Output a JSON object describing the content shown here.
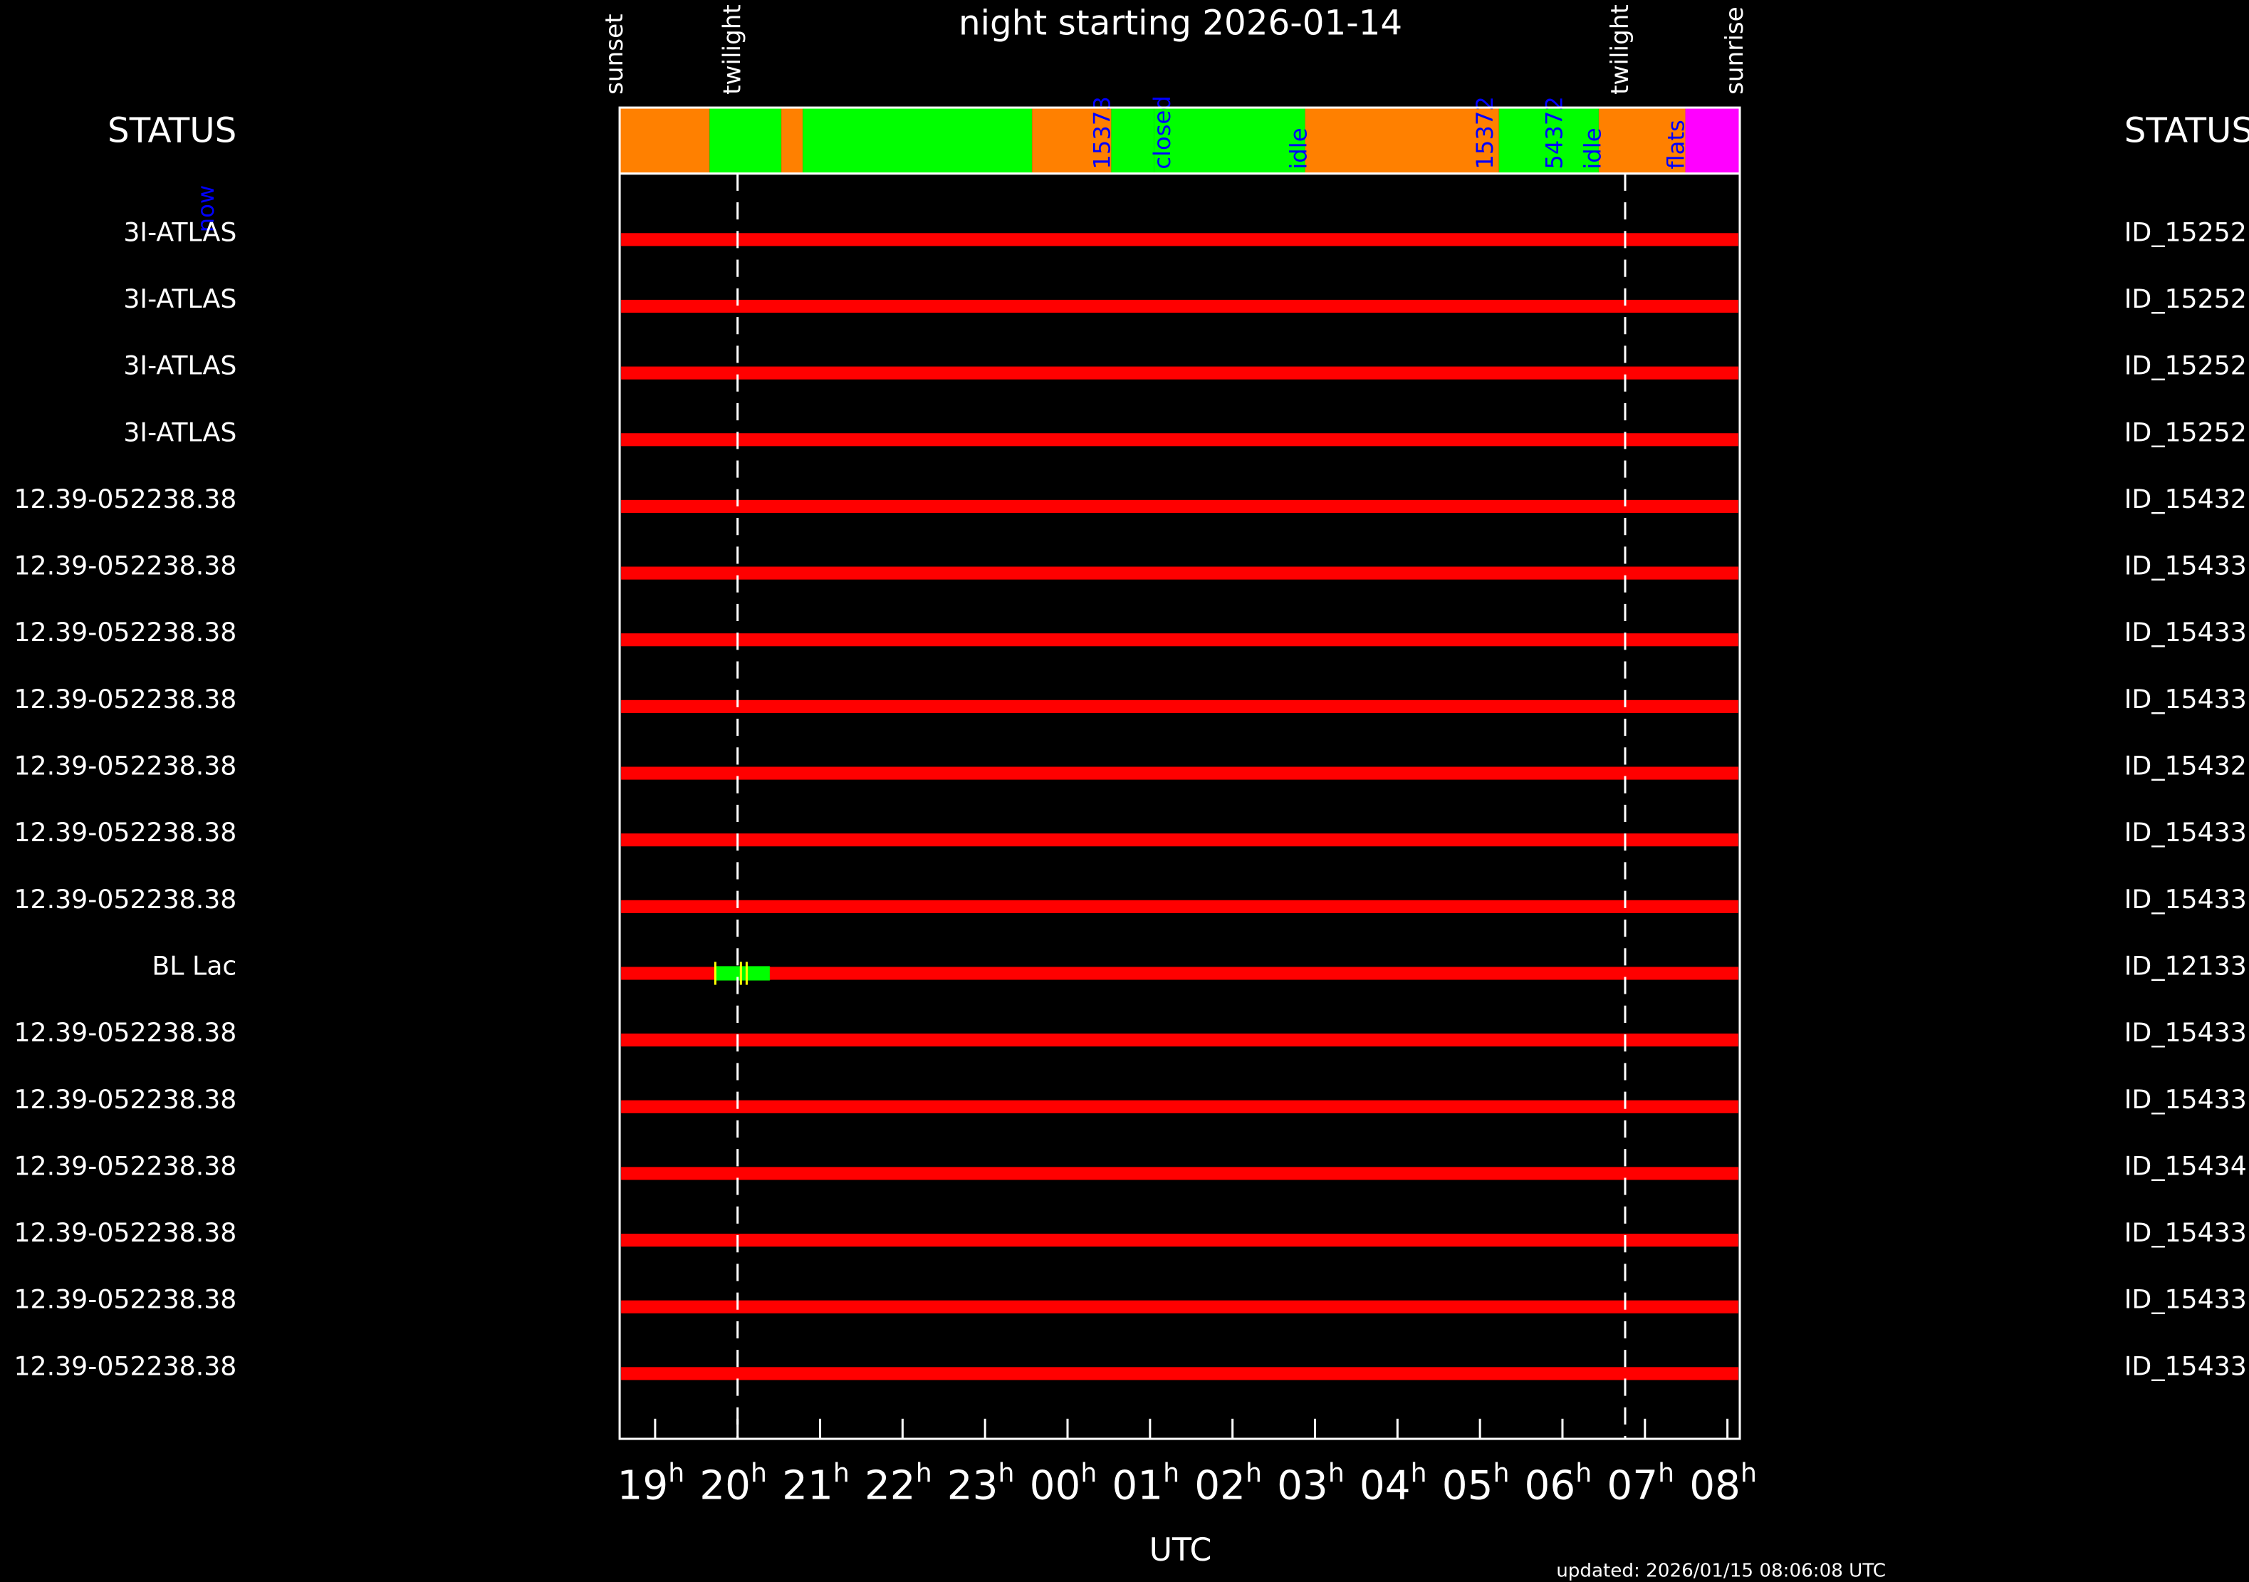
{
  "title": "night starting 2026-01-14",
  "axis": {
    "label": "UTC",
    "xlim": [
      18.57,
      32.15
    ],
    "ticks": [
      {
        "value": 19,
        "label": "19",
        "suffix": "h"
      },
      {
        "value": 20,
        "label": "20",
        "suffix": "h"
      },
      {
        "value": 21,
        "label": "21",
        "suffix": "h"
      },
      {
        "value": 22,
        "label": "22",
        "suffix": "h"
      },
      {
        "value": 23,
        "label": "23",
        "suffix": "h"
      },
      {
        "value": 24,
        "label": "00",
        "suffix": "h"
      },
      {
        "value": 25,
        "label": "01",
        "suffix": "h"
      },
      {
        "value": 26,
        "label": "02",
        "suffix": "h"
      },
      {
        "value": 27,
        "label": "03",
        "suffix": "h"
      },
      {
        "value": 28,
        "label": "04",
        "suffix": "h"
      },
      {
        "value": 29,
        "label": "05",
        "suffix": "h"
      },
      {
        "value": 30,
        "label": "06",
        "suffix": "h"
      },
      {
        "value": 31,
        "label": "07",
        "suffix": "h"
      },
      {
        "value": 32,
        "label": "08",
        "suffix": "h"
      }
    ]
  },
  "events": [
    {
      "label": "sunset",
      "time": 18.57
    },
    {
      "label": "twilight",
      "time": 20.0,
      "line": true
    },
    {
      "label": "twilight",
      "time": 30.76,
      "line": true
    },
    {
      "label": "sunrise",
      "time": 32.15
    }
  ],
  "status": {
    "label_left": "STATUS",
    "label_right": "STATUS",
    "now": "now",
    "segments": [
      {
        "start": 18.57,
        "end": 19.66,
        "color": "#ff8000"
      },
      {
        "start": 19.66,
        "end": 20.53,
        "color": "#00ff00"
      },
      {
        "start": 20.53,
        "end": 20.79,
        "color": "#ff8000"
      },
      {
        "start": 20.79,
        "end": 23.57,
        "color": "#00ff00"
      },
      {
        "start": 23.57,
        "end": 24.53,
        "color": "#ff8000"
      },
      {
        "start": 24.53,
        "end": 25.05,
        "color": "#00ff00"
      },
      {
        "start": 25.05,
        "end": 26.88,
        "color": "#00ff00"
      },
      {
        "start": 26.88,
        "end": 29.23,
        "color": "#ff8000"
      },
      {
        "start": 29.23,
        "end": 30.44,
        "color": "#00ff00"
      },
      {
        "start": 30.44,
        "end": 31.49,
        "color": "#ff8000"
      },
      {
        "start": 31.49,
        "end": 32.15,
        "color": "#ff00ff"
      }
    ],
    "labels": [
      {
        "text": "15373",
        "time": 24.41
      },
      {
        "text": "closed",
        "time": 25.14
      },
      {
        "text": "idle",
        "time": 26.79
      },
      {
        "text": "15372",
        "time": 29.05
      },
      {
        "text": "54372",
        "time": 29.89
      },
      {
        "text": "idle",
        "time": 30.36
      },
      {
        "text": "flats",
        "time": 31.37
      }
    ]
  },
  "rows": [
    {
      "name": "3I-ATLAS",
      "id": "ID_15252"
    },
    {
      "name": "3I-ATLAS",
      "id": "ID_15252"
    },
    {
      "name": "3I-ATLAS",
      "id": "ID_15252"
    },
    {
      "name": "3I-ATLAS",
      "id": "ID_15252"
    },
    {
      "name": "12.39-052238.38",
      "id": "ID_15432"
    },
    {
      "name": "12.39-052238.38",
      "id": "ID_15433"
    },
    {
      "name": "12.39-052238.38",
      "id": "ID_15433"
    },
    {
      "name": "12.39-052238.38",
      "id": "ID_15433"
    },
    {
      "name": "12.39-052238.38",
      "id": "ID_15432"
    },
    {
      "name": "12.39-052238.38",
      "id": "ID_15433"
    },
    {
      "name": "12.39-052238.38",
      "id": "ID_15433"
    },
    {
      "name": "BL Lac",
      "id": "ID_12133",
      "observations": [
        {
          "start": 19.73,
          "end": 20.39
        }
      ],
      "markers": [
        19.73,
        20.04,
        20.11
      ]
    },
    {
      "name": "12.39-052238.38",
      "id": "ID_15433"
    },
    {
      "name": "12.39-052238.38",
      "id": "ID_15433"
    },
    {
      "name": "12.39-052238.38",
      "id": "ID_15434"
    },
    {
      "name": "12.39-052238.38",
      "id": "ID_15433"
    },
    {
      "name": "12.39-052238.38",
      "id": "ID_15433"
    },
    {
      "name": "12.39-052238.38",
      "id": "ID_15433"
    }
  ],
  "footer": "updated: 2026/01/15 08:06:08 UTC"
}
